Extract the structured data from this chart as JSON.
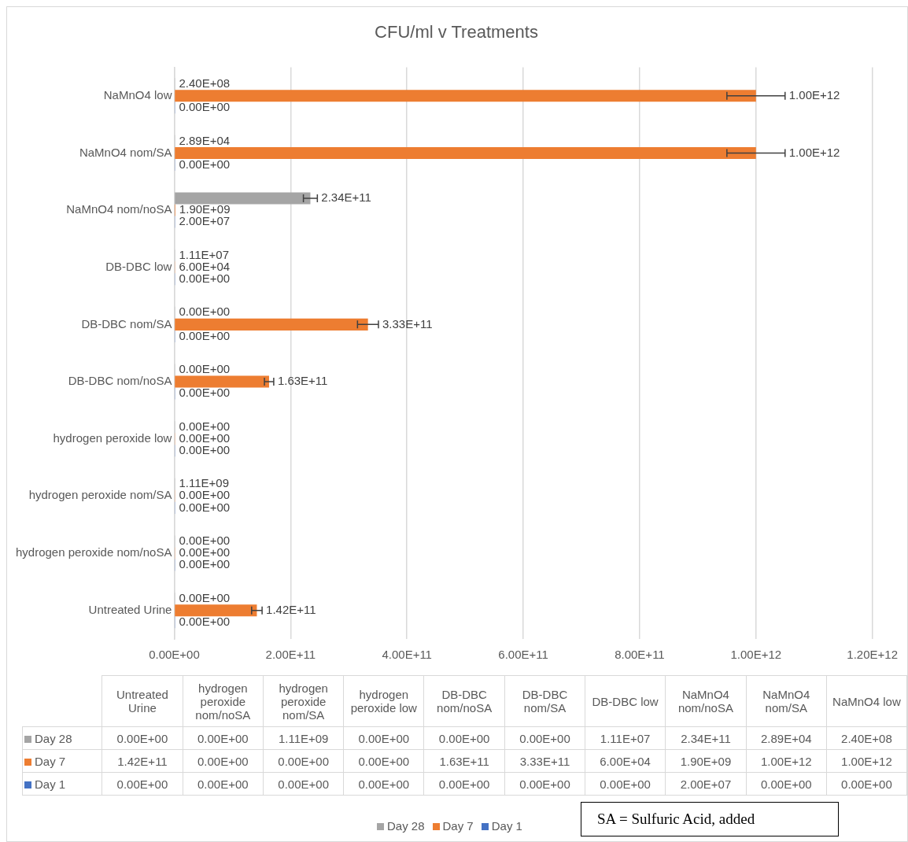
{
  "chart_data": {
    "type": "bar",
    "orientation": "horizontal",
    "title": "CFU/ml v Treatments",
    "categories": [
      "NaMnO4 low",
      "NaMnO4 nom/SA",
      "NaMnO4 nom/noSA",
      "DB-DBC low",
      "DB-DBC nom/SA",
      "DB-DBC nom/noSA",
      "hydrogen peroxide low",
      "hydrogen peroxide nom/SA",
      "hydrogen peroxide nom/noSA",
      "Untreated Urine"
    ],
    "series": [
      {
        "name": "Day 28",
        "color": "#a5a5a5",
        "values": [
          240000000,
          28900,
          234000000000,
          11100000,
          0,
          0,
          0,
          1110000000,
          0,
          0
        ],
        "value_labels": [
          "2.40E+08",
          "2.89E+04",
          "2.34E+11",
          "1.11E+07",
          "0.00E+00",
          "0.00E+00",
          "0.00E+00",
          "1.11E+09",
          "0.00E+00",
          "0.00E+00"
        ],
        "errors": [
          null,
          null,
          12000000000,
          null,
          null,
          null,
          null,
          null,
          null,
          null
        ]
      },
      {
        "name": "Day 7",
        "color": "#ed7d31",
        "values": [
          1000000000000,
          1000000000000,
          1900000000,
          60000,
          333000000000,
          163000000000,
          0,
          0,
          0,
          142000000000
        ],
        "value_labels": [
          "1.00E+12",
          "1.00E+12",
          "1.90E+09",
          "6.00E+04",
          "3.33E+11",
          "1.63E+11",
          "0.00E+00",
          "0.00E+00",
          "0.00E+00",
          "1.42E+11"
        ],
        "errors": [
          50000000000,
          50000000000,
          null,
          null,
          18000000000,
          8000000000,
          null,
          null,
          null,
          9000000000
        ]
      },
      {
        "name": "Day 1",
        "color": "#4472c4",
        "values": [
          0,
          0,
          20000000,
          0,
          0,
          0,
          0,
          0,
          0,
          0
        ],
        "value_labels": [
          "0.00E+00",
          "0.00E+00",
          "2.00E+07",
          "0.00E+00",
          "0.00E+00",
          "0.00E+00",
          "0.00E+00",
          "0.00E+00",
          "0.00E+00",
          "0.00E+00"
        ]
      }
    ],
    "xlim": [
      0,
      1200000000000
    ],
    "xticks": [
      {
        "value": 0,
        "label": "0.00E+00"
      },
      {
        "value": 200000000000,
        "label": "2.00E+11"
      },
      {
        "value": 400000000000,
        "label": "4.00E+11"
      },
      {
        "value": 600000000000,
        "label": "6.00E+11"
      },
      {
        "value": 800000000000,
        "label": "8.00E+11"
      },
      {
        "value": 1000000000000,
        "label": "1.00E+12"
      },
      {
        "value": 1200000000000,
        "label": "1.20E+12"
      }
    ],
    "grid": "x",
    "legend": "bottom",
    "annotations": [
      "SA = Sulfuric Acid, added"
    ]
  }
}
